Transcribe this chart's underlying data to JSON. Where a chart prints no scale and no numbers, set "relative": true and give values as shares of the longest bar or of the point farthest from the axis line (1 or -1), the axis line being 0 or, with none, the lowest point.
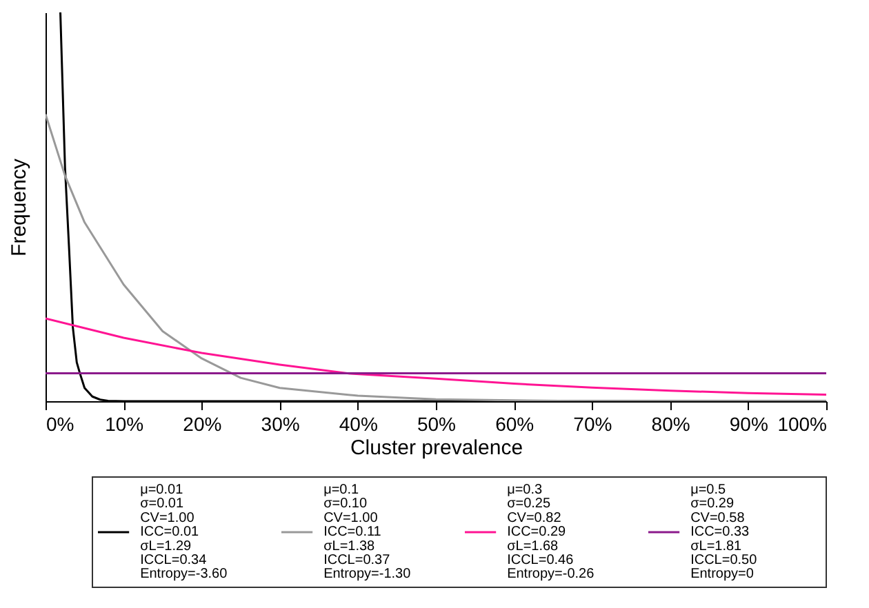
{
  "chart_data": {
    "type": "line",
    "xlabel": "Cluster prevalence",
    "ylabel": "Frequency",
    "relative": true,
    "xlim": [
      0,
      100
    ],
    "xticks": [
      {
        "value": 0,
        "label": "0%"
      },
      {
        "value": 10,
        "label": "10%"
      },
      {
        "value": 20,
        "label": "20%"
      },
      {
        "value": 30,
        "label": "30%"
      },
      {
        "value": 40,
        "label": "40%"
      },
      {
        "value": 50,
        "label": "50%"
      },
      {
        "value": 60,
        "label": "60%"
      },
      {
        "value": 70,
        "label": "70%"
      },
      {
        "value": 80,
        "label": "80%"
      },
      {
        "value": 90,
        "label": "90%"
      },
      {
        "value": 100,
        "label": "100%"
      }
    ],
    "grid": false,
    "legend": "bottom",
    "marker": "none",
    "line_style": "solid",
    "series": [
      {
        "name": "μ=0.01\nσ=0.01\nCV=1.00\nICC=0.01\nσL=1.29\nICCL=0.34\nEntropy=-3.60",
        "color": "#000000",
        "x": [
          1.9,
          2.5,
          3,
          3.5,
          4,
          4.4,
          5,
          6,
          7,
          8,
          10,
          100
        ],
        "values": [
          1,
          0.6,
          0.4,
          0.19,
          0.1,
          0.072,
          0.034,
          0.012,
          0.004,
          0.001,
          0,
          0
        ]
      },
      {
        "name": "μ=0.1\nσ=0.10\nCV=1.00\nICC=0.11\nσL=1.38\nICCL=0.37\nEntropy=-1.30",
        "color": "#999999",
        "x": [
          0,
          2.5,
          5,
          10,
          15,
          20,
          25,
          30,
          40,
          50,
          60,
          70,
          100
        ],
        "values": [
          0.738,
          0.58,
          0.46,
          0.3,
          0.18,
          0.11,
          0.06,
          0.034,
          0.014,
          0.005,
          0.002,
          0,
          0
        ]
      },
      {
        "name": "μ=0.3\nσ=0.25\nCV=0.82\nICC=0.29\nσL=1.68\nICCL=0.46\nEntropy=-0.26",
        "color": "#ff1493",
        "x": [
          0,
          10,
          20,
          30,
          39,
          50,
          60,
          70,
          80,
          90,
          100
        ],
        "values": [
          0.213,
          0.163,
          0.124,
          0.094,
          0.071,
          0.058,
          0.045,
          0.035,
          0.027,
          0.021,
          0.017
        ]
      },
      {
        "name": "μ=0.5\nσ=0.29\nCV=0.58\nICC=0.33\nσL=1.81\nICCL=0.50\nEntropy=0",
        "color": "#8b1a8b",
        "x": [
          0,
          100
        ],
        "values": [
          0.0717,
          0.0717
        ]
      }
    ]
  }
}
